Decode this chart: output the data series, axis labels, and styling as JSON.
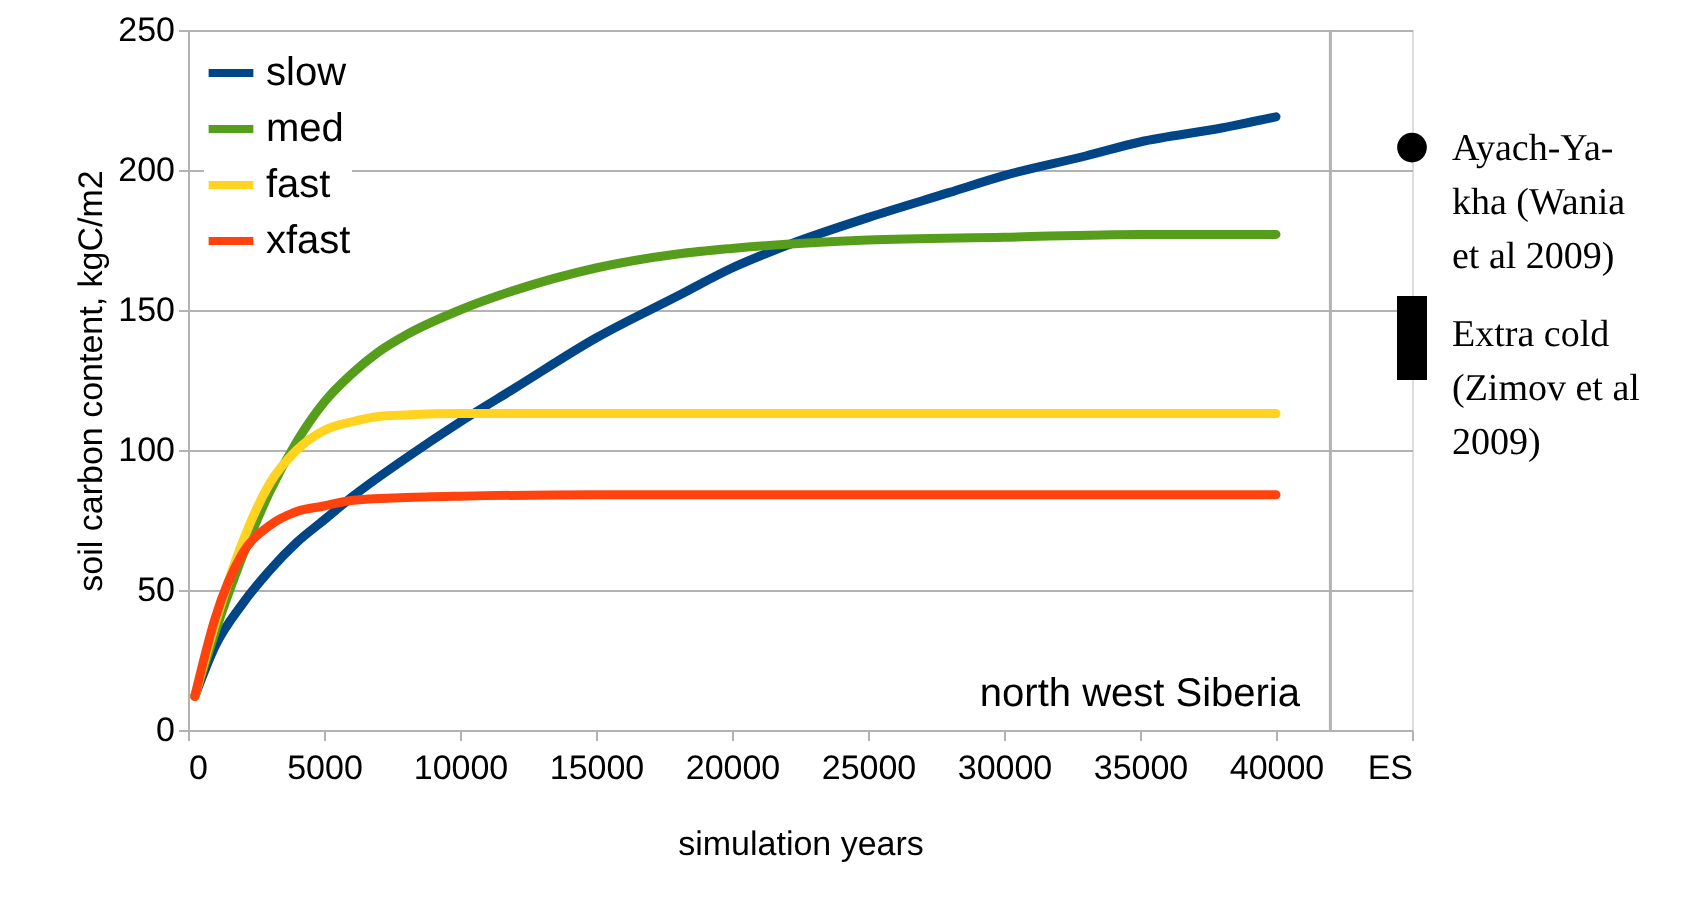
{
  "chart_data": {
    "type": "line",
    "xlabel": "simulation years",
    "ylabel": "soil carbon content, kgC/m2",
    "xlim": [
      0,
      45000
    ],
    "ylim": [
      0,
      250
    ],
    "xticks": [
      0,
      5000,
      10000,
      15000,
      20000,
      25000,
      30000,
      35000,
      40000,
      {
        "value": 45000,
        "label": "ES"
      }
    ],
    "yticks": [
      0,
      50,
      100,
      150,
      200,
      250
    ],
    "grid": "y",
    "legend": "top left",
    "line_style": "solid",
    "series": [
      {
        "name": "slow",
        "color": "#004586",
        "x": [
          250,
          1000,
          2000,
          3000,
          4000,
          5000,
          6000,
          8000,
          10000,
          12000,
          15000,
          18000,
          20000,
          22000,
          25000,
          28000,
          30000,
          33000,
          35000,
          38000,
          40000
        ],
        "values": [
          12,
          30,
          45,
          57,
          67,
          75,
          83,
          97,
          110,
          122,
          140,
          155,
          165,
          173,
          183,
          192,
          198,
          205,
          210,
          215,
          219
        ]
      },
      {
        "name": "med",
        "color": "#579d1c",
        "x": [
          250,
          1000,
          2000,
          3000,
          4000,
          5000,
          6000,
          7000,
          8000,
          10000,
          12000,
          15000,
          18000,
          20000,
          25000,
          30000,
          35000,
          40000
        ],
        "values": [
          12,
          35,
          62,
          85,
          103,
          117,
          127,
          135,
          141,
          150,
          157,
          165,
          170,
          172,
          175,
          176,
          177,
          177
        ]
      },
      {
        "name": "fast",
        "color": "#ffd320",
        "x": [
          250,
          1000,
          2000,
          3000,
          4000,
          5000,
          6000,
          7000,
          8000,
          10000,
          15000,
          40000
        ],
        "values": [
          12,
          38,
          67,
          88,
          100,
          107,
          110,
          112,
          112.5,
          113,
          113,
          113
        ]
      },
      {
        "name": "xfast",
        "color": "#ff420e",
        "x": [
          250,
          1000,
          2000,
          3000,
          4000,
          5000,
          6000,
          8000,
          10000,
          15000,
          40000
        ],
        "values": [
          12,
          40,
          63,
          73,
          78,
          80,
          82,
          83,
          83.5,
          84,
          84
        ]
      },
      {
        "color": "#000000",
        "type": "scatter",
        "x": [
          45000
        ],
        "values": [
          208
        ]
      },
      {
        "color": "#000000",
        "type": "bar",
        "x": [
          45000
        ],
        "base": [
          125
        ],
        "values": [
          30
        ]
      }
    ],
    "ref_lines": [
      {
        "axis": "x",
        "value": 42000,
        "color": "#b3b3b3"
      }
    ],
    "annotations": [
      "north west Siberia",
      {
        "text": "Ayach-Ya-\nkha (Wania\net al 2009)",
        "x": 45000,
        "y": 208
      },
      "Extra cold\n(Zimov et al\n2009)"
    ]
  }
}
